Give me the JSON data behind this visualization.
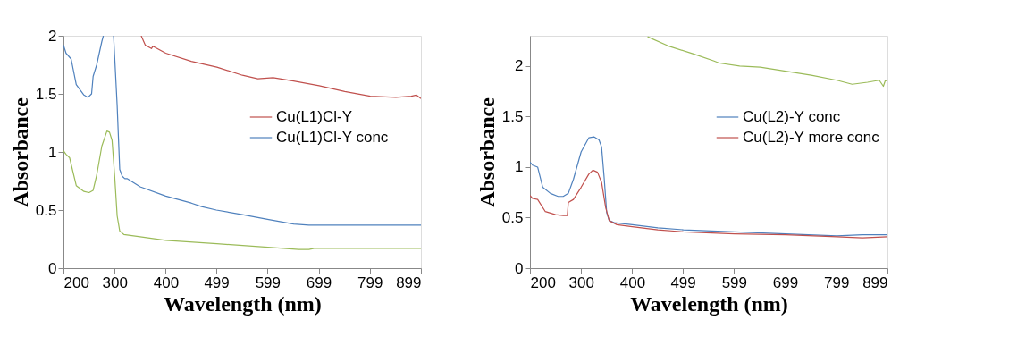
{
  "chart_data": [
    {
      "type": "line",
      "xlabel": "Wavelength (nm)",
      "ylabel": "Absorbance",
      "xlim": [
        200,
        899
      ],
      "xticks": [
        200,
        300,
        400,
        499,
        599,
        699,
        799,
        899
      ],
      "ylim": [
        0,
        2
      ],
      "yticks": [
        0,
        0.5,
        1,
        1.5,
        2
      ],
      "grid": false,
      "legend": "right",
      "marker": "none",
      "line_style": "solid",
      "series": [
        {
          "name": "Cu(L1)Cl-Y",
          "color": "#c0504d",
          "x": [
            352,
            360,
            372,
            375,
            400,
            450,
            500,
            550,
            580,
            610,
            650,
            700,
            750,
            800,
            850,
            880,
            890,
            899
          ],
          "values": [
            2.0,
            1.92,
            1.89,
            1.91,
            1.85,
            1.78,
            1.73,
            1.66,
            1.63,
            1.64,
            1.61,
            1.57,
            1.52,
            1.48,
            1.47,
            1.48,
            1.49,
            1.46
          ]
        },
        {
          "name": "Cu(L1)Cl-Y conc",
          "color": "#4f81bd",
          "x": [
            200,
            205,
            215,
            225,
            240,
            248,
            255,
            258,
            265,
            275,
            278,
            288,
            298,
            305,
            310,
            315,
            320,
            325,
            350,
            400,
            450,
            470,
            499,
            550,
            599,
            650,
            680,
            700,
            899
          ],
          "values": [
            1.92,
            1.85,
            1.8,
            1.58,
            1.49,
            1.47,
            1.5,
            1.65,
            1.75,
            1.95,
            2.0,
            null,
            2.0,
            1.4,
            0.85,
            0.79,
            0.77,
            0.77,
            0.7,
            0.62,
            0.56,
            0.53,
            0.5,
            0.46,
            0.42,
            0.38,
            0.37,
            0.37,
            0.37
          ]
        },
        {
          "color": "#9bbb59",
          "x": [
            200,
            205,
            212,
            225,
            240,
            250,
            258,
            265,
            275,
            285,
            290,
            295,
            300,
            305,
            310,
            318,
            350,
            400,
            500,
            600,
            660,
            680,
            690,
            899
          ],
          "values": [
            1.01,
            0.98,
            0.95,
            0.71,
            0.66,
            0.65,
            0.67,
            0.8,
            1.05,
            1.18,
            1.17,
            1.1,
            0.8,
            0.45,
            0.32,
            0.29,
            0.27,
            0.24,
            0.21,
            0.18,
            0.16,
            0.16,
            0.17,
            0.17
          ]
        }
      ]
    },
    {
      "type": "line",
      "xlabel": "Wavelength (nm)",
      "ylabel": "Absorbance",
      "xlim": [
        200,
        899
      ],
      "xticks": [
        200,
        300,
        400,
        499,
        599,
        699,
        799,
        899
      ],
      "ylim": [
        0,
        2.3
      ],
      "yticks": [
        0,
        0.5,
        1,
        1.5,
        2
      ],
      "grid": false,
      "legend": "right",
      "marker": "none",
      "line_style": "solid",
      "series": [
        {
          "name": "Cu(L2)-Y conc",
          "color": "#4f81bd",
          "x": [
            200,
            205,
            215,
            225,
            240,
            255,
            265,
            275,
            285,
            300,
            315,
            325,
            335,
            340,
            345,
            350,
            355,
            365,
            400,
            450,
            500,
            600,
            700,
            800,
            850,
            899
          ],
          "values": [
            1.05,
            1.02,
            1.0,
            0.8,
            0.74,
            0.71,
            0.71,
            0.74,
            0.88,
            1.15,
            1.29,
            1.3,
            1.27,
            1.2,
            0.9,
            0.55,
            0.47,
            0.45,
            0.43,
            0.4,
            0.38,
            0.36,
            0.34,
            0.32,
            0.33,
            0.33
          ]
        },
        {
          "name": "Cu(L2)-Y more conc",
          "color": "#c0504d",
          "x": [
            200,
            205,
            215,
            230,
            250,
            265,
            273,
            275,
            285,
            300,
            315,
            323,
            332,
            340,
            348,
            355,
            370,
            400,
            450,
            500,
            600,
            700,
            800,
            850,
            899
          ],
          "values": [
            0.72,
            0.69,
            0.68,
            0.56,
            0.53,
            0.52,
            0.52,
            0.65,
            0.68,
            0.8,
            0.93,
            0.97,
            0.95,
            0.85,
            0.6,
            0.47,
            0.43,
            0.41,
            0.38,
            0.36,
            0.34,
            0.33,
            0.31,
            0.3,
            0.31
          ]
        },
        {
          "color": "#9bbb59",
          "x": [
            430,
            470,
            520,
            560,
            570,
            610,
            650,
            700,
            750,
            800,
            830,
            860,
            883,
            891,
            895,
            899
          ],
          "values": [
            2.29,
            2.2,
            2.12,
            2.05,
            2.03,
            2.0,
            1.99,
            1.95,
            1.91,
            1.86,
            1.82,
            1.84,
            1.86,
            1.8,
            1.86,
            1.85
          ]
        }
      ]
    }
  ]
}
